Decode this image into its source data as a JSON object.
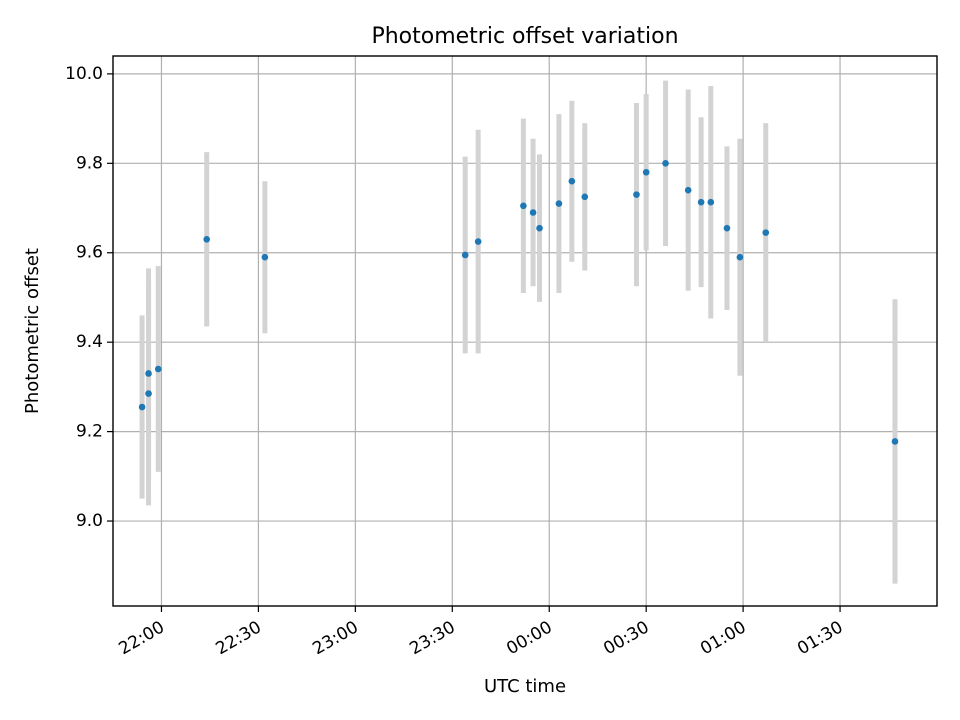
{
  "chart_data": {
    "type": "scatter",
    "title": "Photometric offset variation",
    "xlabel": "UTC time",
    "ylabel": "Photometric offset",
    "x_axis": {
      "kind": "time",
      "range": [
        "21:45",
        "02:00"
      ],
      "ticks": [
        "22:00",
        "22:30",
        "23:00",
        "23:30",
        "00:00",
        "00:30",
        "01:00",
        "01:30"
      ]
    },
    "y_axis": {
      "range": [
        8.81,
        10.04
      ],
      "ticks": [
        9.0,
        9.2,
        9.4,
        9.6,
        9.8,
        10.0
      ],
      "tick_labels": [
        "9.0",
        "9.2",
        "9.4",
        "9.6",
        "9.8",
        "10.0"
      ]
    },
    "grid": true,
    "colors": {
      "marker": "#1f77b4",
      "errorbar": "#d3d3d3",
      "grid": "#b0b0b0"
    },
    "points": [
      {
        "t": "21:54",
        "y": 9.255,
        "err": 0.205
      },
      {
        "t": "21:56",
        "y": 9.285,
        "err": 0.25
      },
      {
        "t": "21:56",
        "y": 9.33,
        "err": 0.235
      },
      {
        "t": "21:59",
        "y": 9.34,
        "err": 0.23
      },
      {
        "t": "22:14",
        "y": 9.63,
        "err": 0.195
      },
      {
        "t": "22:32",
        "y": 9.59,
        "err": 0.17
      },
      {
        "t": "23:34",
        "y": 9.595,
        "err": 0.22
      },
      {
        "t": "23:38",
        "y": 9.625,
        "err": 0.25
      },
      {
        "t": "23:52",
        "y": 9.705,
        "err": 0.195
      },
      {
        "t": "23:55",
        "y": 9.69,
        "err": 0.165
      },
      {
        "t": "23:57",
        "y": 9.655,
        "err": 0.165
      },
      {
        "t": "00:03",
        "y": 9.71,
        "err": 0.2
      },
      {
        "t": "00:07",
        "y": 9.76,
        "err": 0.18
      },
      {
        "t": "00:11",
        "y": 9.725,
        "err": 0.165
      },
      {
        "t": "00:27",
        "y": 9.73,
        "err": 0.205
      },
      {
        "t": "00:30",
        "y": 9.78,
        "err": 0.175
      },
      {
        "t": "00:36",
        "y": 9.8,
        "err": 0.185
      },
      {
        "t": "00:43",
        "y": 9.74,
        "err": 0.225
      },
      {
        "t": "00:47",
        "y": 9.713,
        "err": 0.19
      },
      {
        "t": "00:50",
        "y": 9.713,
        "err": 0.26
      },
      {
        "t": "00:55",
        "y": 9.655,
        "err": 0.183
      },
      {
        "t": "00:59",
        "y": 9.59,
        "err": 0.265
      },
      {
        "t": "01:07",
        "y": 9.645,
        "err": 0.245
      },
      {
        "t": "01:47",
        "y": 9.178,
        "err": 0.318
      }
    ]
  }
}
